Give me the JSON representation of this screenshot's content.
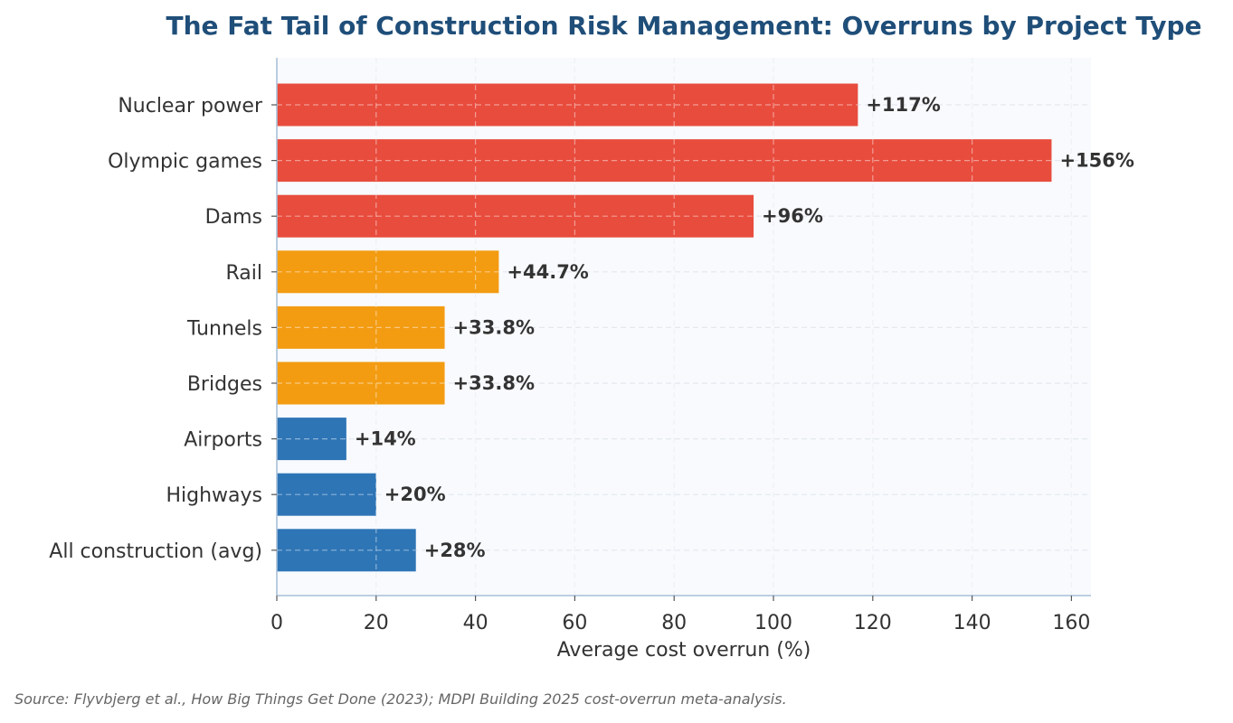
{
  "chart_data": {
    "type": "bar",
    "orientation": "horizontal",
    "title": "The Fat Tail of Construction Risk Management: Overruns by Project Type",
    "xlabel": "Average cost overrun (%)",
    "ylabel": "",
    "xlim": [
      0,
      164
    ],
    "xticks": [
      0,
      20,
      40,
      60,
      80,
      100,
      120,
      140,
      160
    ],
    "grid": true,
    "categories": [
      "Nuclear power",
      "Olympic games",
      "Dams",
      "Rail",
      "Tunnels",
      "Bridges",
      "Airports",
      "Highways",
      "All construction (avg)"
    ],
    "values": [
      117,
      156,
      96,
      44.7,
      33.8,
      33.8,
      14,
      20,
      28
    ],
    "value_labels": [
      "+117%",
      "+156%",
      "+96%",
      "+44.7%",
      "+33.8%",
      "+33.8%",
      "+14%",
      "+20%",
      "+28%"
    ],
    "colors": [
      "#e84c3d",
      "#e84c3d",
      "#e84c3d",
      "#f39c12",
      "#f39c12",
      "#f39c12",
      "#2e75b6",
      "#2e75b6",
      "#2e75b6"
    ]
  },
  "source_note": "Source: Flyvbjerg et al., How Big Things Get Done (2023); MDPI Building 2025 cost-overrun meta-analysis.",
  "style": {
    "title_color": "#1f4e79",
    "plot_background": "#f8fafd",
    "axis_color": "#a9c0d8",
    "grid_color": "#e4e8ee"
  }
}
